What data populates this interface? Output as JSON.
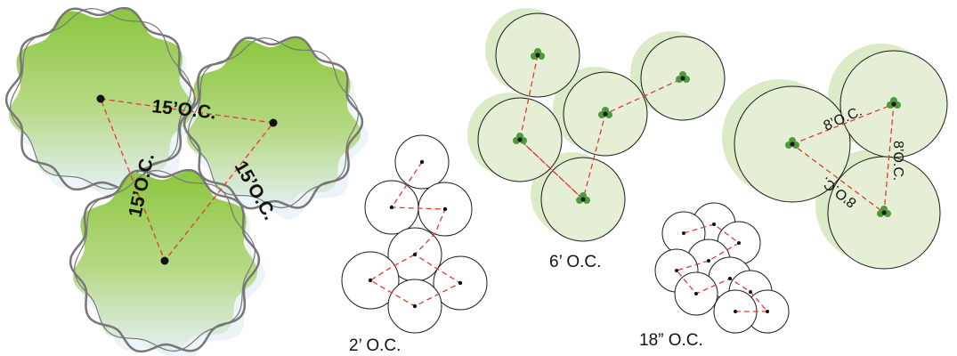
{
  "colors": {
    "canopy_top": "#8cc63f",
    "canopy_bottom": "#e6f0f7",
    "shrub_fill": "#e4efd5",
    "shrub_shadow": "#dcebc7",
    "leaf": "#4e9a3c",
    "dash": "#e53935",
    "outline": "#777777",
    "circle_stroke": "#1a1a1a"
  },
  "diagrams": {
    "trees": {
      "label_top": "15’O.C.",
      "label_left": "15’O.C.",
      "label_right": "15’O.C.",
      "icon": "tree-canopy-icon"
    },
    "plants_2ft": {
      "caption": "2’ O.C.",
      "icon": "plant-circle-icon"
    },
    "shrubs_6ft": {
      "caption": "6’ O.C.",
      "icon": "shrub-icon"
    },
    "plants_18in": {
      "caption": "18” O.C.",
      "icon": "plant-circle-icon"
    },
    "shrubs_8ft": {
      "label_top": "8’O.C.",
      "label_right": "8’O.C.",
      "label_bottom": "8’O.C.",
      "icon": "shrub-icon"
    }
  }
}
